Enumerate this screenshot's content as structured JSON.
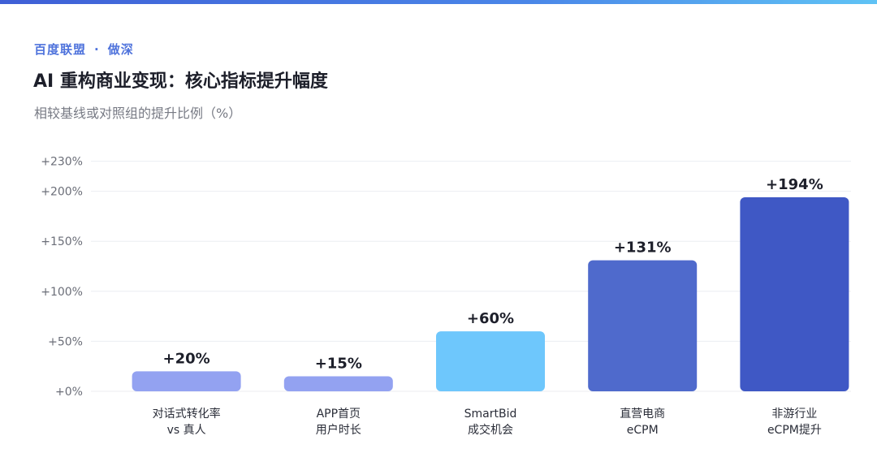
{
  "header": {
    "brand_left": "百度联盟",
    "brand_dot": "·",
    "brand_right": "做深",
    "title": "AI 重构商业变现：核心指标提升幅度",
    "subtitle": "相较基线或对照组的提升比例（%）"
  },
  "chart_data": {
    "type": "bar",
    "title": "AI 重构商业变现：核心指标提升幅度",
    "ylabel": "",
    "xlabel": "",
    "ylim": [
      0,
      230
    ],
    "yticks": [
      0,
      50,
      100,
      150,
      200,
      230
    ],
    "ytick_labels": [
      "+0%",
      "+50%",
      "+100%",
      "+150%",
      "+200%",
      "+230%"
    ],
    "grid": true,
    "categories": [
      [
        "对话式转化率",
        "vs 真人"
      ],
      [
        "APP首页",
        "用户时长"
      ],
      [
        "SmartBid",
        "成交机会"
      ],
      [
        "直营电商",
        "eCPM"
      ],
      [
        "非游行业",
        "eCPM提升"
      ]
    ],
    "values": [
      20,
      15,
      60,
      131,
      194
    ],
    "value_labels": [
      "+20%",
      "+15%",
      "+60%",
      "+131%",
      "+194%"
    ],
    "colors": [
      "#93a2f1",
      "#93a2f1",
      "#6ec7fc",
      "#4f6acc",
      "#3f58c5"
    ]
  }
}
